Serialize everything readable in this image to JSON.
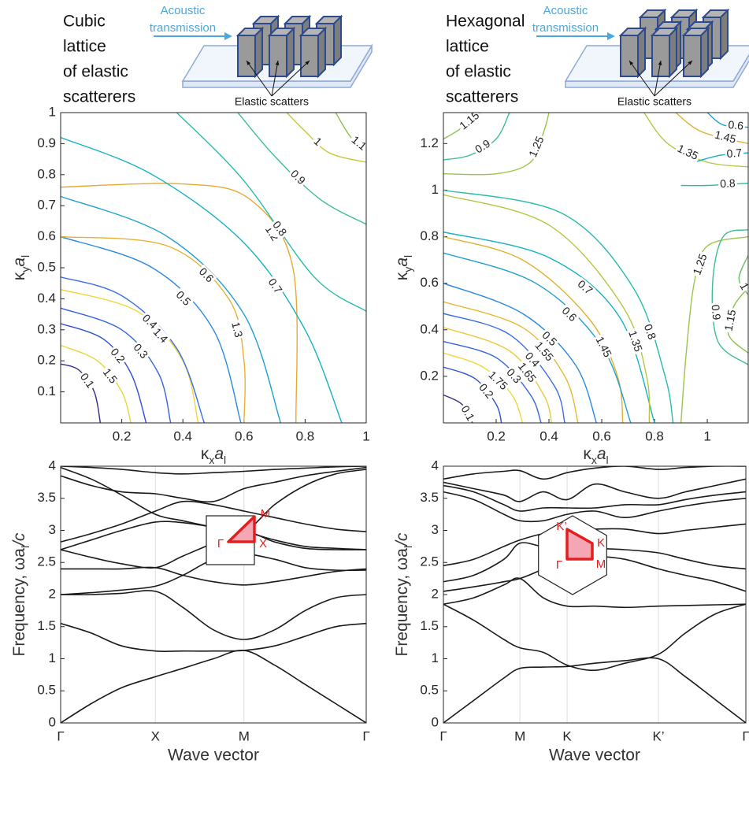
{
  "chart_data": [
    {
      "type": "contour",
      "caption": [
        "Cubic",
        "lattice",
        "of elastic",
        "scatterers"
      ],
      "source_label": [
        "Acoustic",
        "transmission"
      ],
      "scatterer_label": "Elastic scatters",
      "xlabel": [
        "κ",
        "x",
        "a",
        "l"
      ],
      "ylabel": [
        "κ",
        "y",
        "a",
        "l"
      ],
      "xlim": [
        0,
        1
      ],
      "ylim": [
        0,
        1
      ],
      "xticks": [
        0.2,
        0.4,
        0.6,
        0.8,
        1
      ],
      "yticks": [
        0.1,
        0.2,
        0.3,
        0.4,
        0.5,
        0.6,
        0.7,
        0.8,
        0.9,
        1
      ],
      "contours": [
        {
          "level": 0.1,
          "color": "#352a87",
          "x": [
            0,
            0.06,
            0.11,
            0.13
          ],
          "y": [
            0.19,
            0.17,
            0.1,
            0
          ]
        },
        {
          "level": 1.5,
          "color": "#e7d63a",
          "x": [
            0,
            0.12,
            0.2,
            0.23
          ],
          "y": [
            0.25,
            0.2,
            0.1,
            0
          ]
        },
        {
          "level": 0.2,
          "color": "#2f4fd6",
          "x": [
            0,
            0.14,
            0.23,
            0.28
          ],
          "y": [
            0.32,
            0.27,
            0.16,
            0
          ]
        },
        {
          "level": 0.3,
          "color": "#3464e0",
          "x": [
            0,
            0.2,
            0.32,
            0.36
          ],
          "y": [
            0.37,
            0.3,
            0.16,
            0
          ]
        },
        {
          "level": 1.4,
          "color": "#f2d43a",
          "x": [
            0,
            0.25,
            0.4,
            0.45
          ],
          "y": [
            0.43,
            0.36,
            0.2,
            0
          ]
        },
        {
          "level": 0.4,
          "color": "#3a6de8",
          "x": [
            0,
            0.2,
            0.38,
            0.47
          ],
          "y": [
            0.47,
            0.41,
            0.24,
            0
          ]
        },
        {
          "level": 0.5,
          "color": "#2a88e0",
          "x": [
            0,
            0.3,
            0.5,
            0.59
          ],
          "y": [
            0.6,
            0.5,
            0.3,
            0
          ]
        },
        {
          "level": 1.3,
          "color": "#e9b030",
          "x": [
            0,
            0.35,
            0.55,
            0.6,
            0.6
          ],
          "y": [
            0.6,
            0.57,
            0.4,
            0.2,
            0
          ]
        },
        {
          "level": 0.6,
          "color": "#1fa0d0",
          "x": [
            0,
            0.35,
            0.6,
            0.72
          ],
          "y": [
            0.73,
            0.6,
            0.35,
            0
          ]
        },
        {
          "level": 1.2,
          "color": "#e8a834",
          "x": [
            0,
            0.4,
            0.62,
            0.76,
            0.77
          ],
          "y": [
            0.76,
            0.77,
            0.72,
            0.5,
            0
          ]
        },
        {
          "level": 0.7,
          "color": "#14b2c4",
          "x": [
            0,
            0.3,
            0.6,
            0.8,
            0.92
          ],
          "y": [
            0.92,
            0.8,
            0.58,
            0.3,
            0
          ]
        },
        {
          "level": 0.8,
          "color": "#28bcaa",
          "x": [
            0.38,
            0.6,
            0.83,
            1
          ],
          "y": [
            1,
            0.78,
            0.47,
            0.36
          ]
        },
        {
          "level": 0.9,
          "color": "#3cbf90",
          "x": [
            0.58,
            0.7,
            0.85,
            1
          ],
          "y": [
            1,
            0.86,
            0.72,
            0.64
          ]
        },
        {
          "level": 1,
          "color": "#c8c63a",
          "x": [
            0.74,
            0.8,
            0.88,
            1
          ],
          "y": [
            1,
            0.94,
            0.87,
            0.84
          ]
        },
        {
          "level": 1.1,
          "color": "#8ec050",
          "x": [
            0.9,
            0.95,
            1
          ],
          "y": [
            1,
            0.92,
            0.88
          ]
        }
      ]
    },
    {
      "type": "contour",
      "caption": [
        "Hexagonal",
        "lattice",
        "of elastic",
        "scatterers"
      ],
      "source_label": [
        "Acoustic",
        "transmission"
      ],
      "scatterer_label": "Elastic scatters",
      "xlabel": [
        "κ",
        "x",
        "a",
        "l"
      ],
      "ylabel": [
        "κ",
        "y",
        "a",
        "l"
      ],
      "xlim": [
        0,
        1.155
      ],
      "ylim": [
        0,
        1.333
      ],
      "xticks": [
        0.2,
        0.4,
        0.6,
        0.8,
        1
      ],
      "yticks": [
        0.2,
        0.4,
        0.6,
        0.8,
        1,
        1.2
      ],
      "contours": [
        {
          "level": 0.1,
          "color": "#352a87",
          "x": [
            0,
            0.07,
            0.11
          ],
          "y": [
            0.12,
            0.08,
            0
          ]
        },
        {
          "level": 0.2,
          "color": "#2f4fd6",
          "x": [
            0,
            0.12,
            0.2,
            0.22
          ],
          "y": [
            0.24,
            0.19,
            0.08,
            0
          ]
        },
        {
          "level": 1.75,
          "color": "#f2d63a",
          "x": [
            0,
            0.15,
            0.26,
            0.3
          ],
          "y": [
            0.3,
            0.24,
            0.12,
            0
          ]
        },
        {
          "level": 0.3,
          "color": "#3464e0",
          "x": [
            0,
            0.2,
            0.33,
            0.37
          ],
          "y": [
            0.35,
            0.28,
            0.12,
            0
          ]
        },
        {
          "level": 1.65,
          "color": "#edc83a",
          "x": [
            0,
            0.25,
            0.38,
            0.41
          ],
          "y": [
            0.41,
            0.31,
            0.12,
            0
          ]
        },
        {
          "level": 0.4,
          "color": "#3a6de8",
          "x": [
            0,
            0.25,
            0.42,
            0.46
          ],
          "y": [
            0.47,
            0.38,
            0.16,
            0
          ]
        },
        {
          "level": 1.55,
          "color": "#e8b735",
          "x": [
            0,
            0.3,
            0.46,
            0.51
          ],
          "y": [
            0.52,
            0.41,
            0.2,
            0
          ]
        },
        {
          "level": 0.5,
          "color": "#2a88e0",
          "x": [
            0,
            0.3,
            0.5,
            0.58
          ],
          "y": [
            0.6,
            0.47,
            0.25,
            0
          ]
        },
        {
          "level": 1.45,
          "color": "#e0b030",
          "x": [
            0,
            0.3,
            0.55,
            0.66,
            0.68
          ],
          "y": [
            0.8,
            0.7,
            0.45,
            0.2,
            0
          ]
        },
        {
          "level": 0.6,
          "color": "#1fa0d0",
          "x": [
            0,
            0.35,
            0.6,
            0.71
          ],
          "y": [
            0.73,
            0.6,
            0.33,
            0
          ]
        },
        {
          "level": 0.7,
          "color": "#14b2c4",
          "x": [
            0,
            0.4,
            0.67,
            0.8
          ],
          "y": [
            0.82,
            0.71,
            0.45,
            0
          ]
        },
        {
          "level": 1.35,
          "color": "#b8c442",
          "x": [
            0,
            0.4,
            0.68,
            0.77,
            0.78
          ],
          "y": [
            0.98,
            0.85,
            0.5,
            0.2,
            0
          ]
        },
        {
          "level": 0.8,
          "color": "#28bcaa",
          "x": [
            0,
            0.45,
            0.72,
            0.84,
            0.87
          ],
          "y": [
            1.0,
            0.9,
            0.58,
            0.2,
            0
          ]
        },
        {
          "level": 1.25,
          "color": "#9cc44a",
          "x": [
            0.9,
            0.92,
            0.95,
            1.0,
            1.155
          ],
          "y": [
            0,
            0.3,
            0.6,
            0.76,
            0.8
          ]
        },
        {
          "level": 0.9,
          "color": "#3cbf90",
          "x": [
            1.155,
            1.06,
            1.02,
            1.04,
            1.155
          ],
          "y": [
            0.83,
            0.8,
            0.6,
            0.35,
            0.25
          ]
        },
        {
          "level": 1.15,
          "color": "#8ec050",
          "x": [
            1.155,
            1.1,
            1.08,
            1.155
          ],
          "y": [
            0.58,
            0.5,
            0.38,
            0.3
          ]
        },
        {
          "level": 1,
          "color": "#6cc06a",
          "x": [
            1.155,
            1.12,
            1.155
          ],
          "y": [
            0.72,
            0.62,
            0.55
          ]
        },
        {
          "level": 1.15,
          "color": "#8ec050",
          "x": [
            0,
            0.06,
            0.14
          ],
          "y": [
            1.22,
            1.26,
            1.333
          ]
        },
        {
          "level": 0.9,
          "color": "#3cbf90",
          "x": [
            0,
            0.1,
            0.2,
            0.25
          ],
          "y": [
            1.13,
            1.15,
            1.22,
            1.333
          ]
        },
        {
          "level": 1.25,
          "color": "#9cc44a",
          "x": [
            0,
            0.2,
            0.33,
            0.38,
            0.4
          ],
          "y": [
            1.07,
            1.07,
            1.12,
            1.25,
            1.333
          ]
        },
        {
          "level": 1.35,
          "color": "#b8c442",
          "x": [
            0.76,
            0.85,
            1.0,
            1.155
          ],
          "y": [
            1.333,
            1.2,
            1.12,
            1.1
          ]
        },
        {
          "level": 1.45,
          "color": "#e0b030",
          "x": [
            0.88,
            0.98,
            1.155
          ],
          "y": [
            1.333,
            1.25,
            1.2
          ]
        },
        {
          "level": 0.6,
          "color": "#1fa0d0",
          "x": [
            1.0,
            1.06,
            1.155
          ],
          "y": [
            1.333,
            1.28,
            1.27
          ]
        },
        {
          "level": 0.7,
          "color": "#14b2c4",
          "x": [
            0.95,
            1.05,
            1.155
          ],
          "y": [
            1.12,
            1.15,
            1.16
          ]
        },
        {
          "level": 0.8,
          "color": "#28bcaa",
          "x": [
            0.9,
            1.0,
            1.155
          ],
          "y": [
            1.02,
            1.02,
            1.03
          ]
        }
      ]
    },
    {
      "type": "line",
      "ylabel": [
        "Frequency, ωa",
        "l",
        "/c"
      ],
      "xlabel": "Wave vector",
      "xlim": [
        0,
        1
      ],
      "ylim": [
        0,
        4
      ],
      "xticks": [
        {
          "value": 0,
          "label": "Γ"
        },
        {
          "value": 0.31,
          "label": "X"
        },
        {
          "value": 0.6,
          "label": "M"
        },
        {
          "value": 1,
          "label": "Γ"
        }
      ],
      "yticks": [
        0,
        0.5,
        1,
        1.5,
        2,
        2.5,
        3,
        3.5,
        4
      ],
      "xgrid": true,
      "color": "#1a1a1a",
      "inset_labels": [
        "Γ",
        "X",
        "M"
      ],
      "x": [
        0,
        0.1,
        0.2,
        0.31,
        0.4,
        0.5,
        0.6,
        0.7,
        0.8,
        0.9,
        1
      ],
      "series": [
        {
          "values": [
            0,
            0.3,
            0.55,
            0.72,
            0.85,
            1.0,
            1.13,
            0.9,
            0.6,
            0.3,
            0
          ]
        },
        {
          "values": [
            1.55,
            1.4,
            1.2,
            1.12,
            1.12,
            1.12,
            1.13,
            1.2,
            1.35,
            1.5,
            1.55
          ]
        },
        {
          "values": [
            2.0,
            2.0,
            2.02,
            2.05,
            1.8,
            1.45,
            1.3,
            1.45,
            1.75,
            1.95,
            2.0
          ]
        },
        {
          "values": [
            2.0,
            2.03,
            2.07,
            2.13,
            2.3,
            2.55,
            2.63,
            2.55,
            2.42,
            2.38,
            2.38
          ]
        },
        {
          "values": [
            2.4,
            2.4,
            2.4,
            2.42,
            2.3,
            2.2,
            2.15,
            2.2,
            2.28,
            2.36,
            2.4
          ]
        },
        {
          "values": [
            2.7,
            2.58,
            2.48,
            2.42,
            2.6,
            2.8,
            2.98,
            2.82,
            2.72,
            2.7,
            2.7
          ]
        },
        {
          "values": [
            2.7,
            2.85,
            3.0,
            3.13,
            3.12,
            3.05,
            2.98,
            2.85,
            2.75,
            2.72,
            2.7
          ]
        },
        {
          "values": [
            2.82,
            2.95,
            3.1,
            3.3,
            3.45,
            3.4,
            3.3,
            3.2,
            3.1,
            3.02,
            2.98
          ]
        },
        {
          "values": [
            3.85,
            3.7,
            3.6,
            3.57,
            3.5,
            3.45,
            3.65,
            3.75,
            3.85,
            3.92,
            3.98
          ]
        },
        {
          "values": [
            3.98,
            3.8,
            3.55,
            3.25,
            3.15,
            3.05,
            2.98,
            3.4,
            3.7,
            3.88,
            3.95
          ]
        },
        {
          "values": [
            4.0,
            3.98,
            3.95,
            3.9,
            3.88,
            3.9,
            3.92,
            3.95,
            3.97,
            3.99,
            4.0
          ]
        }
      ]
    },
    {
      "type": "line",
      "ylabel": [
        "Frequency, ωa",
        "l",
        "/c"
      ],
      "xlabel": "Wave vector",
      "xlim": [
        0,
        1
      ],
      "ylim": [
        0,
        4
      ],
      "xticks": [
        {
          "value": 0,
          "label": "Γ"
        },
        {
          "value": 0.253,
          "label": "M"
        },
        {
          "value": 0.409,
          "label": "K"
        },
        {
          "value": 0.711,
          "label": "K’"
        },
        {
          "value": 1,
          "label": "Γ"
        }
      ],
      "yticks": [
        0,
        0.5,
        1,
        1.5,
        2,
        2.5,
        3,
        3.5,
        4
      ],
      "xgrid": true,
      "color": "#1a1a1a",
      "inset_labels": [
        "Γ",
        "M",
        "K",
        "K’"
      ],
      "x": [
        0,
        0.1,
        0.2,
        0.253,
        0.33,
        0.409,
        0.5,
        0.6,
        0.711,
        0.8,
        0.9,
        1
      ],
      "series": [
        {
          "values": [
            0,
            0.35,
            0.7,
            0.85,
            0.87,
            0.88,
            0.93,
            0.97,
            1.0,
            0.72,
            0.36,
            0
          ]
        },
        {
          "values": [
            1.85,
            1.6,
            1.3,
            1.17,
            1.1,
            0.9,
            0.82,
            0.93,
            1.07,
            1.4,
            1.7,
            1.85
          ]
        },
        {
          "values": [
            1.85,
            1.95,
            2.15,
            2.25,
            1.95,
            1.82,
            1.82,
            1.8,
            1.82,
            1.83,
            1.84,
            1.85
          ]
        },
        {
          "values": [
            2.05,
            2.12,
            2.2,
            2.25,
            2.4,
            2.6,
            2.6,
            2.55,
            2.4,
            2.3,
            2.2,
            2.05
          ]
        },
        {
          "values": [
            2.2,
            2.3,
            2.55,
            2.8,
            2.75,
            2.75,
            2.72,
            2.7,
            2.65,
            2.55,
            2.45,
            2.4
          ]
        },
        {
          "values": [
            2.45,
            2.55,
            2.75,
            2.85,
            2.95,
            3.0,
            3.02,
            3.02,
            2.95,
            3.0,
            3.05,
            3.1
          ]
        },
        {
          "values": [
            3.6,
            3.48,
            3.25,
            3.15,
            3.15,
            3.25,
            3.3,
            3.2,
            3.3,
            3.38,
            3.45,
            3.5
          ]
        },
        {
          "values": [
            3.7,
            3.6,
            3.4,
            3.3,
            3.35,
            3.35,
            3.35,
            3.4,
            3.4,
            3.48,
            3.55,
            3.6
          ]
        },
        {
          "values": [
            3.75,
            3.65,
            3.55,
            3.45,
            3.6,
            3.48,
            3.72,
            3.6,
            3.5,
            3.6,
            3.7,
            3.8
          ]
        },
        {
          "values": [
            3.8,
            3.88,
            3.92,
            3.93,
            3.8,
            3.9,
            3.97,
            4.0,
            3.95,
            3.98,
            4.0,
            4.0
          ]
        }
      ]
    }
  ]
}
